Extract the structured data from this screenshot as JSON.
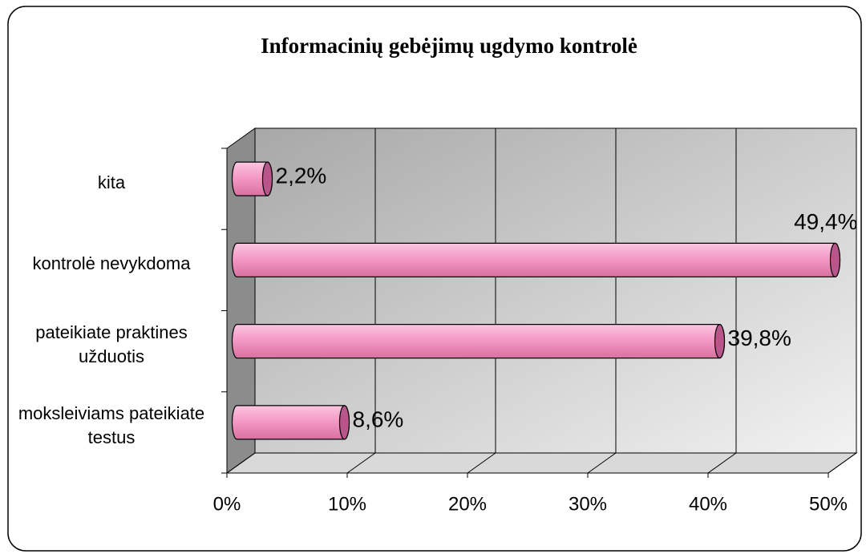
{
  "chart_data": {
    "type": "bar3d-horizontal",
    "title": "Informacinių gebėjimų ugdymo kontrolė",
    "categories": [
      "moksleiviams pateikiate testus",
      "pateikiate praktines užduotis",
      "kontrolė nevykdoma",
      "kita"
    ],
    "values": [
      8.6,
      39.8,
      49.4,
      2.2
    ],
    "value_labels": [
      "8,6%",
      "39,8%",
      "49,4%",
      "2,2%"
    ],
    "color": "#f49ac6",
    "xlim": [
      0,
      50
    ],
    "xticks": [
      {
        "value": 0,
        "label": "0%"
      },
      {
        "value": 10,
        "label": "10%"
      },
      {
        "value": 20,
        "label": "20%"
      },
      {
        "value": 30,
        "label": "30%"
      },
      {
        "value": 40,
        "label": "40%"
      },
      {
        "value": 50,
        "label": "50%"
      }
    ],
    "grid": true
  }
}
